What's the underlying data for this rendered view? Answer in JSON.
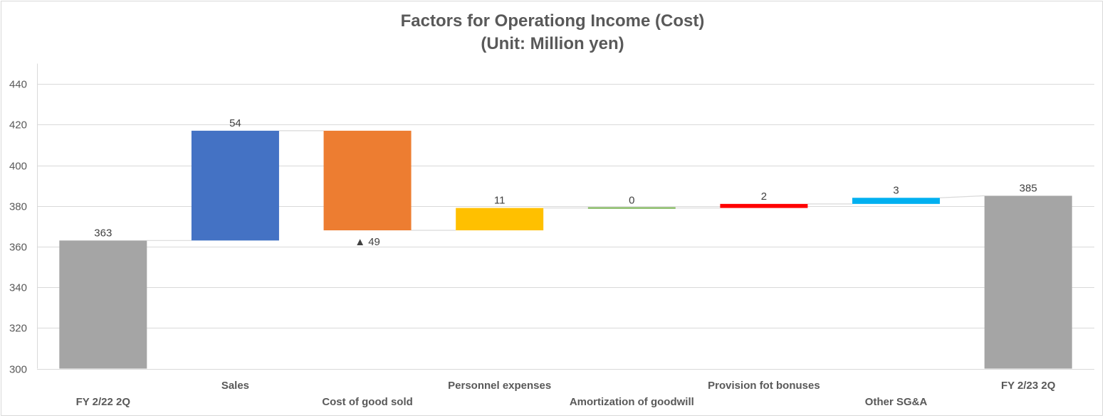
{
  "chart_data": {
    "type": "bar",
    "subtype": "waterfall",
    "title": "Factors for Operationg Income (Cost)",
    "subtitle": "(Unit: Million yen)",
    "ylim": [
      300,
      450
    ],
    "yticks": [
      300,
      320,
      340,
      360,
      380,
      400,
      420,
      440
    ],
    "grid": true,
    "negative_marker": "▲",
    "categories": [
      "FY 2/22 2Q",
      "Sales",
      "Cost of good sold",
      "Personnel expenses",
      "Amortization of goodwill",
      "Provision fot bonuses",
      "Other SG&A",
      "FY 2/23 2Q"
    ],
    "bars": [
      {
        "category": "FY 2/22 2Q",
        "kind": "total",
        "start": 300,
        "end": 363,
        "label": "363",
        "color": "#a5a5a5"
      },
      {
        "category": "Sales",
        "kind": "increase",
        "start": 363,
        "end": 417,
        "label": "54",
        "color": "#4472c4"
      },
      {
        "category": "Cost of good sold",
        "kind": "decrease",
        "start": 417,
        "end": 368,
        "label": "▲ 49",
        "color": "#ed7d31"
      },
      {
        "category": "Personnel expenses",
        "kind": "increase",
        "start": 368,
        "end": 379,
        "label": "11",
        "color": "#ffc000"
      },
      {
        "category": "Amortization of goodwill",
        "kind": "increase",
        "start": 379,
        "end": 379,
        "label": "0",
        "color": "#70ad47"
      },
      {
        "category": "Provision fot bonuses",
        "kind": "increase",
        "start": 379,
        "end": 381,
        "label": "2",
        "color": "#ff0000"
      },
      {
        "category": "Other SG&A",
        "kind": "increase",
        "start": 381,
        "end": 384,
        "label": "3",
        "color": "#00b0f0"
      },
      {
        "category": "FY 2/23 2Q",
        "kind": "total",
        "start": 300,
        "end": 385,
        "label": "385",
        "color": "#a5a5a5"
      }
    ],
    "colors": {
      "grid": "#d9d9d9",
      "connector": "#d9d9d9",
      "axis_text": "#595959",
      "label_text": "#404040"
    }
  }
}
